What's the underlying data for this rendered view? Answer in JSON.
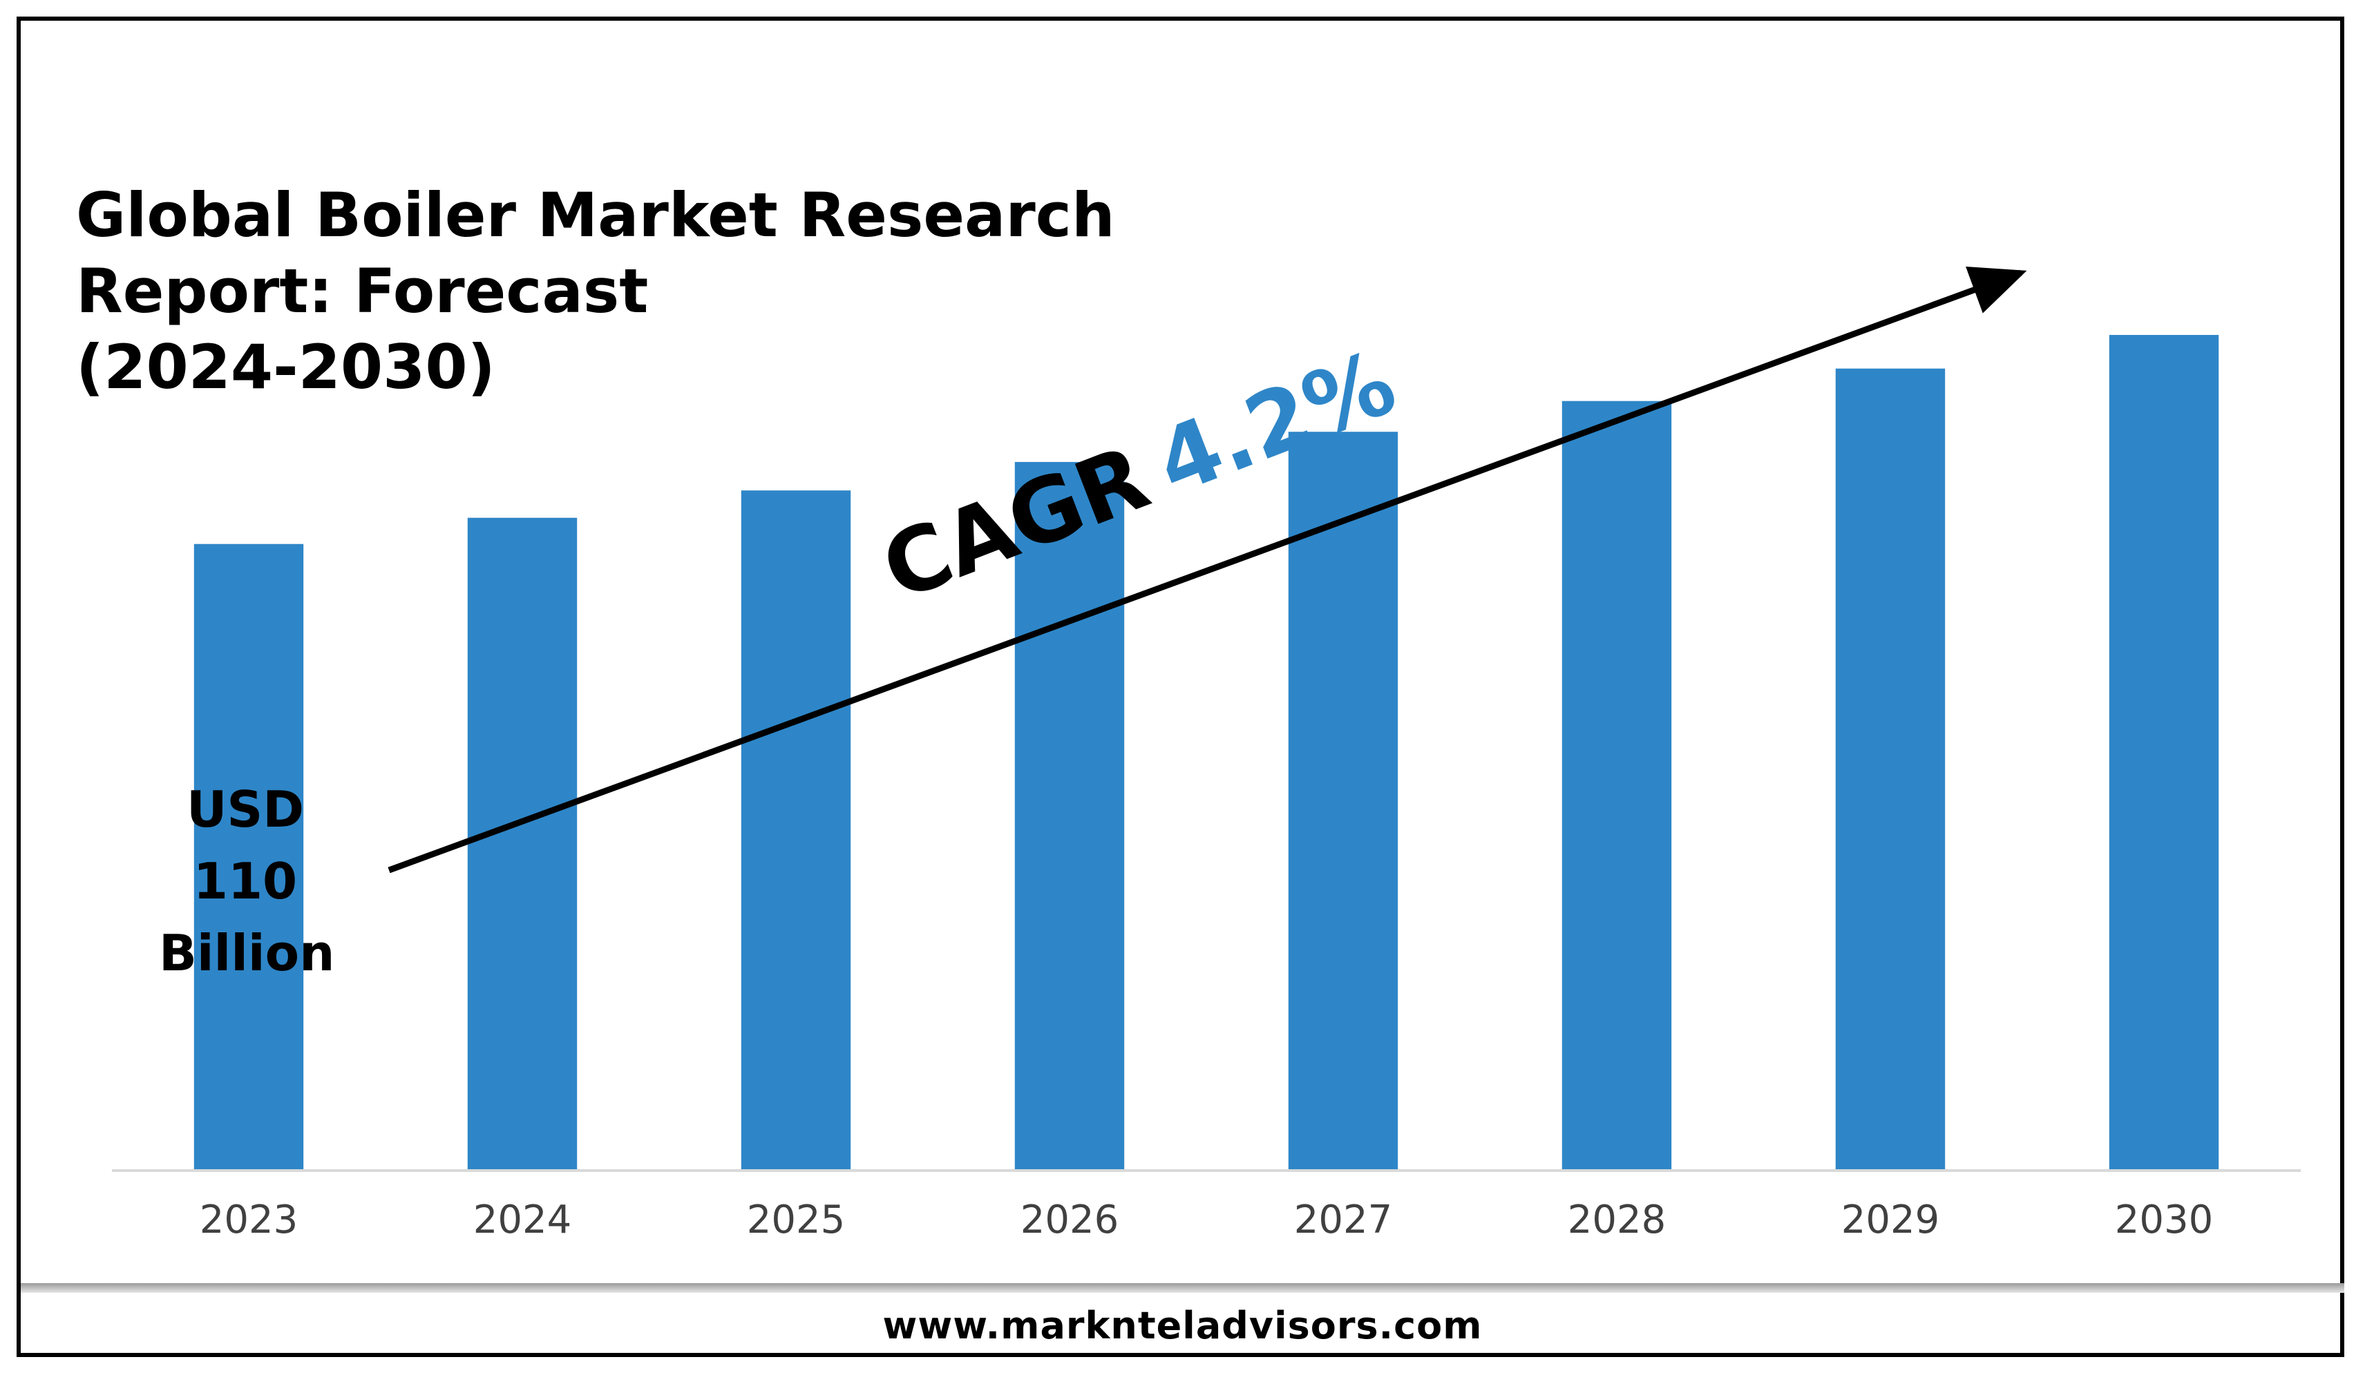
{
  "title_lines": [
    "Global Boiler Market Research",
    "Report: Forecast",
    "(2024-2030)"
  ],
  "first_bar_label_lines": [
    "USD",
    "110",
    "Billion"
  ],
  "cagr": {
    "word": "CAGR",
    "value": "4.2%"
  },
  "footer": {
    "url": "www.marknteladvisors.com"
  },
  "colors": {
    "bar": "#2e86c8",
    "cagr_value": "#2e86c8",
    "axis": "#d9d9d9",
    "tick_label": "#404040",
    "arrow": "#000000"
  },
  "chart_data": {
    "type": "bar",
    "title": "Global Boiler Market Research Report: Forecast (2024-2030)",
    "categories": [
      "2023",
      "2024",
      "2025",
      "2026",
      "2027",
      "2028",
      "2029",
      "2030"
    ],
    "series": [
      {
        "values": [
          110,
          114.6,
          119.4,
          124.4,
          129.7,
          135.1,
          140.8,
          146.7
        ]
      }
    ],
    "units": "USD Billion",
    "annotation": "CAGR 4.2%",
    "xlabel": "",
    "ylabel": "",
    "ylim": [
      0,
      146.7
    ],
    "grid": false,
    "legend": "none"
  }
}
